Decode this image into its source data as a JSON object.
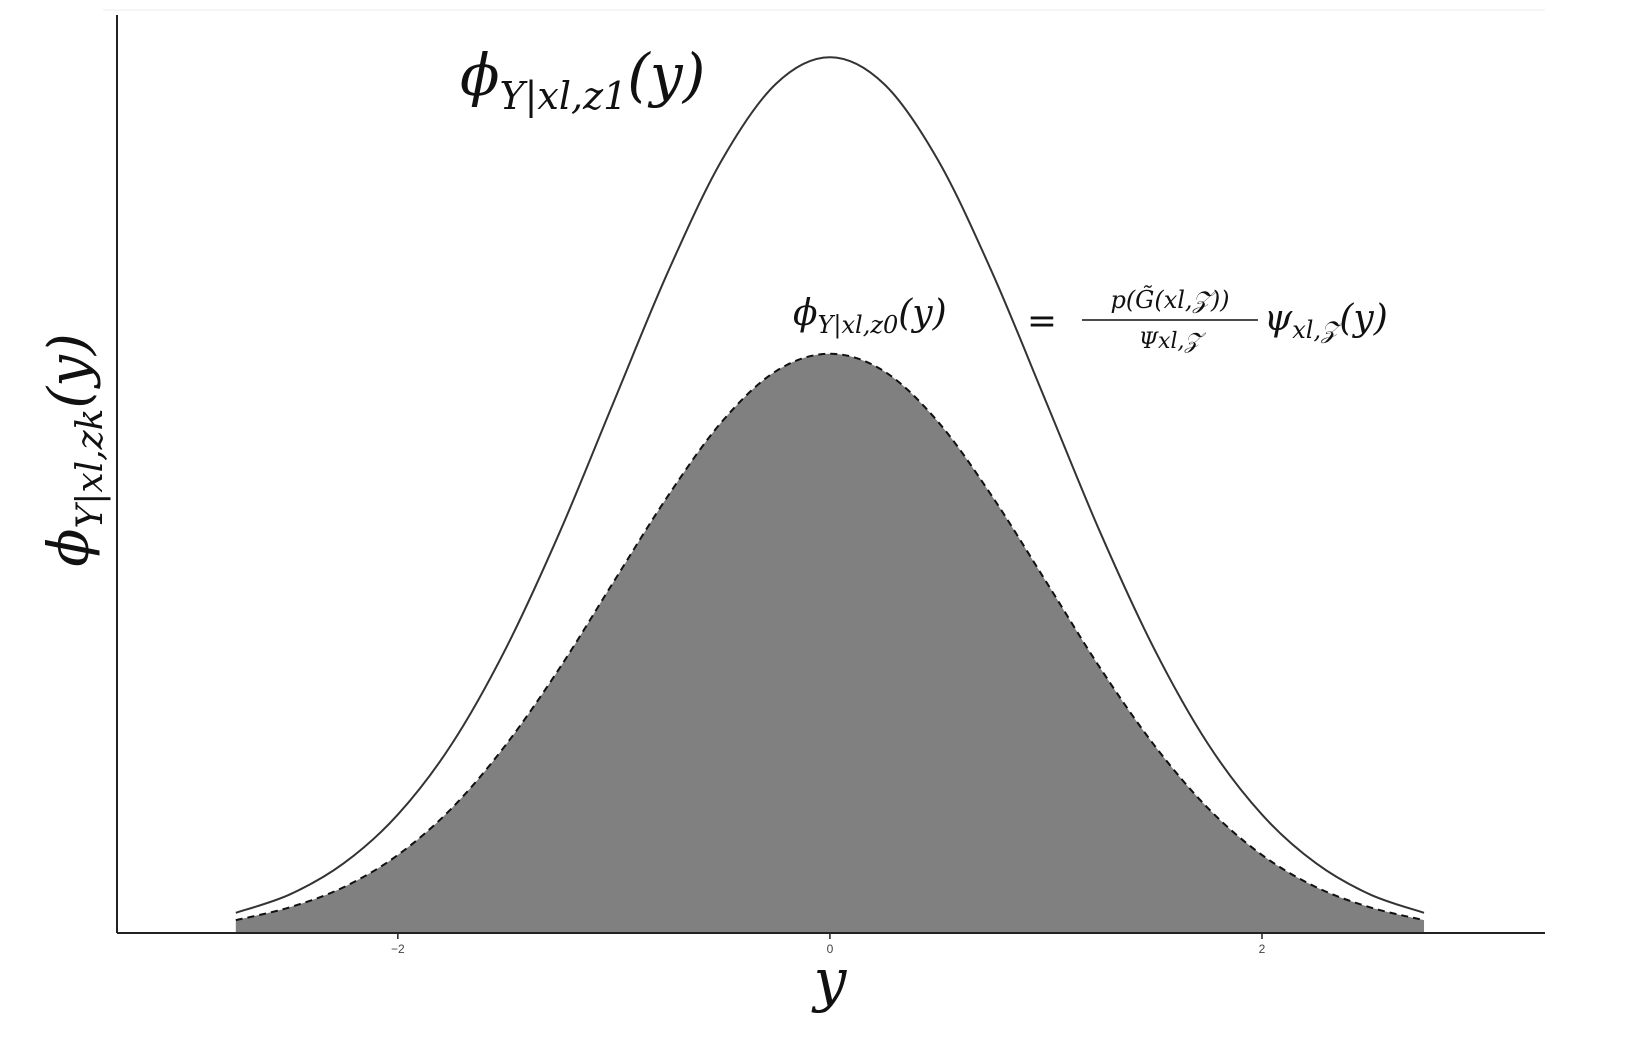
{
  "chart_data": {
    "type": "density",
    "x_label": "y",
    "y_label": {
      "parts": [
        "ϕ",
        "Y|xl,zk",
        "(y)"
      ]
    },
    "x": [
      -2.75,
      -2.5,
      -2.25,
      -2,
      -1.75,
      -1.5,
      -1.25,
      -1,
      -0.75,
      -0.5,
      -0.25,
      0,
      0.25,
      0.5,
      0.75,
      1,
      1.25,
      1.5,
      1.75,
      2,
      2.25,
      2.5,
      2.75
    ],
    "series": [
      {
        "color": "#333333",
        "style": "solid",
        "fill": null,
        "values": [
          0.022,
          0.042,
          0.076,
          0.129,
          0.206,
          0.31,
          0.437,
          0.579,
          0.72,
          0.842,
          0.925,
          0.954,
          0.925,
          0.842,
          0.72,
          0.579,
          0.437,
          0.31,
          0.206,
          0.129,
          0.076,
          0.042,
          0.022
        ]
      },
      {
        "color": "#111111",
        "style": "dashed",
        "fill": "#808080",
        "values": [
          0.014,
          0.028,
          0.05,
          0.085,
          0.136,
          0.205,
          0.289,
          0.383,
          0.476,
          0.557,
          0.612,
          0.631,
          0.612,
          0.557,
          0.476,
          0.383,
          0.289,
          0.205,
          0.136,
          0.085,
          0.05,
          0.028,
          0.014
        ]
      }
    ],
    "xlim": [
      -3.3,
      3.31
    ],
    "ylim": [
      0,
      1
    ],
    "xticks": [
      {
        "value": -2,
        "label": "−2"
      },
      0,
      2
    ],
    "annotations": [
      {
        "parts": [
          "ϕ",
          "Y|xl,z1",
          "(y)"
        ]
      },
      {
        "parts": [
          "ϕ",
          "Y|xl,z0",
          "(y)",
          "=",
          "p(G̃(xl,𝒵))",
          "Ψxl,𝒵",
          "ψ",
          "xl,𝒵",
          "(y)"
        ]
      }
    ]
  }
}
